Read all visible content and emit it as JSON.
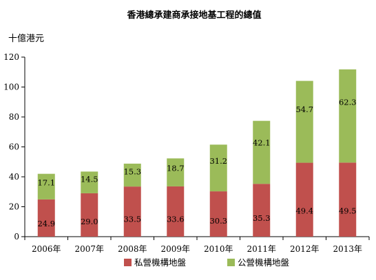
{
  "chart_data": {
    "type": "bar",
    "stacked": true,
    "title": "香港總承建商承接地基工程的總值",
    "ylabel": "十億港元",
    "xlabel": "",
    "ylim": [
      0,
      120
    ],
    "yticks": [
      0,
      20,
      40,
      60,
      80,
      100,
      120
    ],
    "categories": [
      "2006年",
      "2007年",
      "2008年",
      "2009年",
      "2010年",
      "2011年",
      "2012年",
      "2013年"
    ],
    "series": [
      {
        "name": "私營機構地盤",
        "color": "#c0504d",
        "values": [
          24.9,
          29.0,
          33.5,
          33.6,
          30.3,
          35.3,
          49.4,
          49.5
        ],
        "labels": [
          "24.9",
          "29.0",
          "33.5",
          "33.6",
          "30.3",
          "35.3",
          "49.4",
          "49.5"
        ]
      },
      {
        "name": "公營機構地盤",
        "color": "#9bbb59",
        "values": [
          17.1,
          14.5,
          15.3,
          18.7,
          31.2,
          42.1,
          54.7,
          62.3
        ],
        "labels": [
          "17.1",
          "14.5",
          "15.3",
          "18.7",
          "31.2",
          "42.1",
          "54.7",
          "62.3"
        ]
      }
    ],
    "grid": false,
    "legend": "bottom"
  }
}
